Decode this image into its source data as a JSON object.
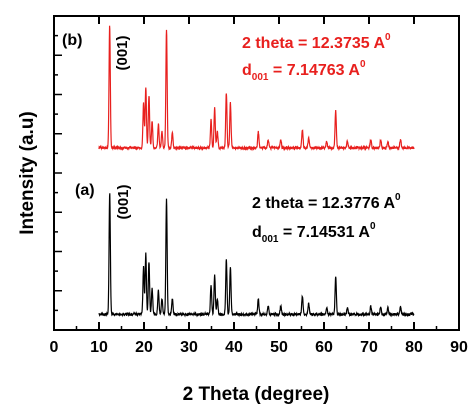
{
  "chart_data": {
    "type": "line",
    "xlabel": "2 Theta (degree)",
    "ylabel": "Intensity (a.u)",
    "xlim": [
      0,
      90
    ],
    "xticks": [
      0,
      10,
      20,
      30,
      40,
      50,
      60,
      70,
      80,
      90
    ],
    "y_ticks_labeled": false,
    "grid": false,
    "legend": "none",
    "series": [
      {
        "name": "(a)",
        "color": "#000000",
        "baseline": 0.05,
        "peaks": [
          {
            "x": 12.38,
            "h": 0.92
          },
          {
            "x": 19.9,
            "h": 0.36
          },
          {
            "x": 20.4,
            "h": 0.46
          },
          {
            "x": 21.1,
            "h": 0.4
          },
          {
            "x": 21.8,
            "h": 0.2
          },
          {
            "x": 23.2,
            "h": 0.18
          },
          {
            "x": 24.0,
            "h": 0.12
          },
          {
            "x": 25.0,
            "h": 0.88
          },
          {
            "x": 26.3,
            "h": 0.12
          },
          {
            "x": 34.9,
            "h": 0.22
          },
          {
            "x": 35.7,
            "h": 0.3
          },
          {
            "x": 36.3,
            "h": 0.12
          },
          {
            "x": 38.3,
            "h": 0.42
          },
          {
            "x": 39.2,
            "h": 0.36
          },
          {
            "x": 45.4,
            "h": 0.12
          },
          {
            "x": 47.6,
            "h": 0.06
          },
          {
            "x": 50.4,
            "h": 0.06
          },
          {
            "x": 55.2,
            "h": 0.14
          },
          {
            "x": 56.6,
            "h": 0.08
          },
          {
            "x": 60.6,
            "h": 0.05
          },
          {
            "x": 62.6,
            "h": 0.28
          },
          {
            "x": 65.2,
            "h": 0.05
          },
          {
            "x": 70.4,
            "h": 0.06
          },
          {
            "x": 72.6,
            "h": 0.06
          },
          {
            "x": 74.2,
            "h": 0.05
          },
          {
            "x": 77.0,
            "h": 0.06
          }
        ]
      },
      {
        "name": "(b)",
        "color": "#e8201e",
        "baseline": 0.58,
        "peaks": [
          {
            "x": 12.37,
            "h": 0.93
          },
          {
            "x": 19.9,
            "h": 0.34
          },
          {
            "x": 20.4,
            "h": 0.46
          },
          {
            "x": 21.1,
            "h": 0.4
          },
          {
            "x": 21.8,
            "h": 0.2
          },
          {
            "x": 23.2,
            "h": 0.18
          },
          {
            "x": 24.0,
            "h": 0.12
          },
          {
            "x": 25.0,
            "h": 0.9
          },
          {
            "x": 26.3,
            "h": 0.12
          },
          {
            "x": 34.9,
            "h": 0.22
          },
          {
            "x": 35.7,
            "h": 0.3
          },
          {
            "x": 36.3,
            "h": 0.12
          },
          {
            "x": 38.3,
            "h": 0.42
          },
          {
            "x": 39.2,
            "h": 0.34
          },
          {
            "x": 45.4,
            "h": 0.12
          },
          {
            "x": 47.6,
            "h": 0.06
          },
          {
            "x": 50.4,
            "h": 0.06
          },
          {
            "x": 55.2,
            "h": 0.14
          },
          {
            "x": 56.6,
            "h": 0.08
          },
          {
            "x": 60.6,
            "h": 0.05
          },
          {
            "x": 62.6,
            "h": 0.28
          },
          {
            "x": 65.2,
            "h": 0.05
          },
          {
            "x": 70.4,
            "h": 0.06
          },
          {
            "x": 72.6,
            "h": 0.06
          },
          {
            "x": 74.2,
            "h": 0.05
          },
          {
            "x": 77.0,
            "h": 0.06
          }
        ]
      }
    ],
    "annotations": [
      {
        "series": "(b)",
        "label": "(b)",
        "peak_tag": "(001)",
        "line1": "2 theta = 12.3735 A",
        "line1_sup": "0",
        "line2_pre": "d",
        "line2_sub": "001",
        "line2_post": " = 7.14763 A",
        "line2_sup": "0",
        "color": "#e8201e"
      },
      {
        "series": "(a)",
        "label": "(a)",
        "peak_tag": "(001)",
        "line1": "2 theta = 12.3776 A",
        "line1_sup": "0",
        "line2_pre": "d",
        "line2_sub": "001",
        "line2_post": " = 7.14531 A",
        "line2_sup": "0",
        "color": "#000000"
      }
    ]
  }
}
